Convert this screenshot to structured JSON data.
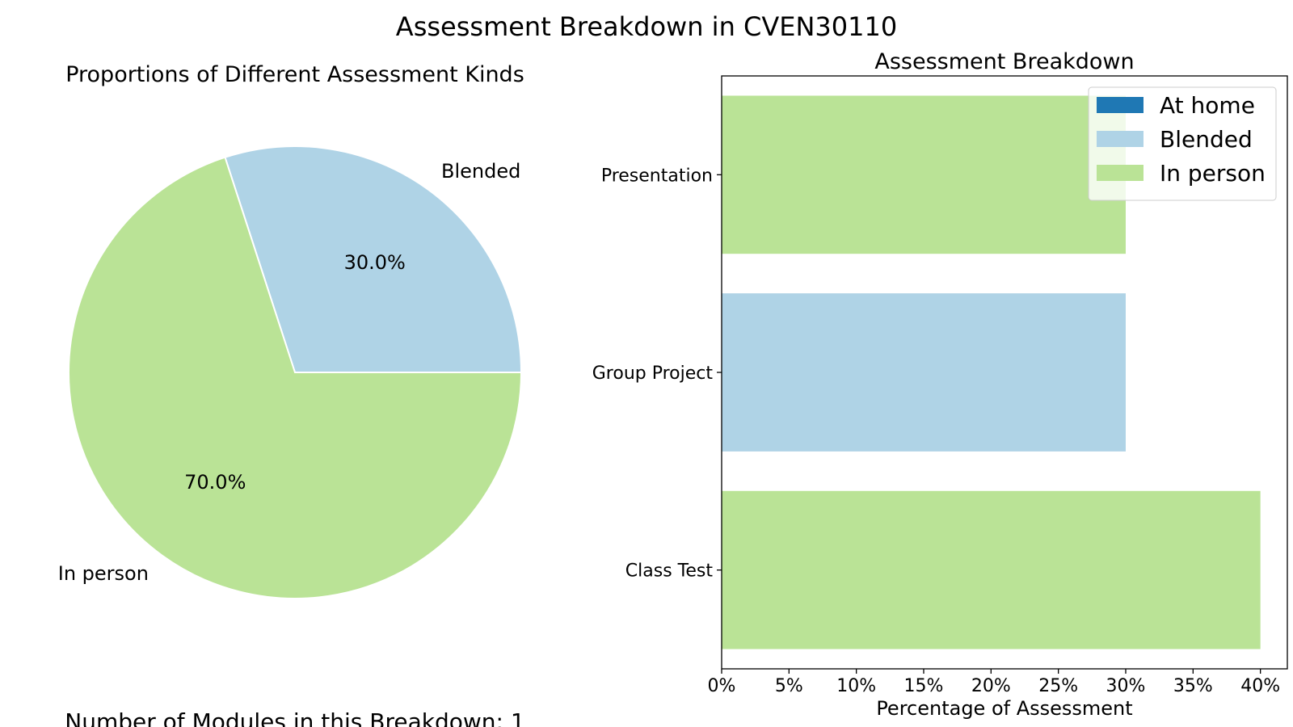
{
  "figure": {
    "title": "Assessment Breakdown in CVEN30110",
    "footer": "Number of Modules in this Breakdown: 1"
  },
  "colors": {
    "at_home": "#1f78b4",
    "blended": "#afd3e6",
    "in_person": "#bae396",
    "axis": "#000000",
    "background": "#ffffff"
  },
  "chart_data": [
    {
      "type": "pie",
      "title": "Proportions of Different Assessment Kinds",
      "slices": [
        {
          "label": "Blended",
          "value": 30.0,
          "pct_label": "30.0%",
          "color": "#afd3e6"
        },
        {
          "label": "In person",
          "value": 70.0,
          "pct_label": "70.0%",
          "color": "#bae396"
        }
      ],
      "start_angle_deg": 0,
      "direction": "counterclockwise"
    },
    {
      "type": "bar",
      "orientation": "horizontal",
      "title": "Assessment Breakdown",
      "xlabel": "Percentage of Assessment",
      "ylabel": "",
      "xlim": [
        0,
        42
      ],
      "xticks": [
        0,
        5,
        10,
        15,
        20,
        25,
        30,
        35,
        40
      ],
      "xtick_labels": [
        "0%",
        "5%",
        "10%",
        "15%",
        "20%",
        "25%",
        "30%",
        "35%",
        "40%"
      ],
      "categories": [
        "Presentation",
        "Group Project",
        "Class Test"
      ],
      "values": [
        30,
        30,
        40
      ],
      "bar_kinds": [
        "In person",
        "Blended",
        "In person"
      ],
      "grid": false,
      "legend": {
        "placement": "top-right",
        "entries": [
          {
            "label": "At home",
            "color": "#1f78b4"
          },
          {
            "label": "Blended",
            "color": "#afd3e6"
          },
          {
            "label": "In person",
            "color": "#bae396"
          }
        ]
      }
    }
  ]
}
